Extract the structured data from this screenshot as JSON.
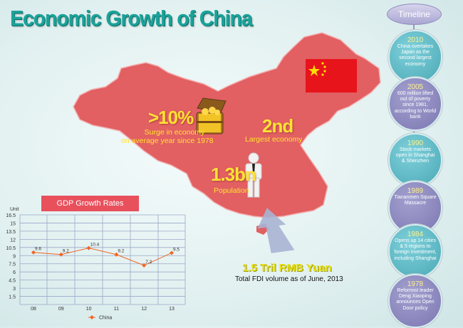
{
  "title": "Economic Growth of China",
  "colors": {
    "map": "#e25f62",
    "accent_yellow": "#ffe233",
    "title_teal": "#1aa39a",
    "line_orange": "#f26522"
  },
  "stats": {
    "surge": {
      "big": ">10%",
      "sub1": "Surge in economy",
      "sub2": "on average year since 1978"
    },
    "rank": {
      "big": "2nd",
      "sub": "Largest economy"
    },
    "population": {
      "big": "1.3bn",
      "sub": "Population"
    },
    "fdi": {
      "big": "1.5 Tril RMB Yuan",
      "sub": "Total FDI volume as of June, 2013"
    }
  },
  "icons": [
    "treasure-chest-icon",
    "person-icon",
    "china-flag-icon",
    "arrow-up-icon"
  ],
  "timeline": {
    "header": "Timeline",
    "events": [
      {
        "year": "2010",
        "text": "China overtakes Japan as the second largest economy"
      },
      {
        "year": "2005",
        "text": "600 million lifted out of poverty since 1981, according to World bank"
      },
      {
        "year": "1990",
        "text": "Stock markets open in Shanghai & Shenzhen"
      },
      {
        "year": "1989",
        "text": "Tiananmen Square Massacre"
      },
      {
        "year": "1984",
        "text": "Opens up 14 cities & 5 regions to foreign investment, including Shanghai"
      },
      {
        "year": "1978",
        "text": "Reformist leader Deng Xiaoping announces Open Door policy"
      }
    ]
  },
  "chart_data": {
    "type": "line",
    "title": "GDP Growth Rates",
    "ylabel": "Unit",
    "xlabel": "",
    "categories": [
      "08",
      "09",
      "10",
      "11",
      "12",
      "13"
    ],
    "yticks": [
      1.5,
      3,
      4.5,
      6,
      7.5,
      9,
      10.5,
      12,
      13.5,
      15,
      16.5
    ],
    "ylim": [
      0,
      16.5
    ],
    "grid": true,
    "legend": "bottom",
    "series": [
      {
        "name": "China",
        "values": [
          9.6,
          9.2,
          10.4,
          9.2,
          7.2,
          9.5
        ],
        "color": "#f26522"
      }
    ]
  }
}
